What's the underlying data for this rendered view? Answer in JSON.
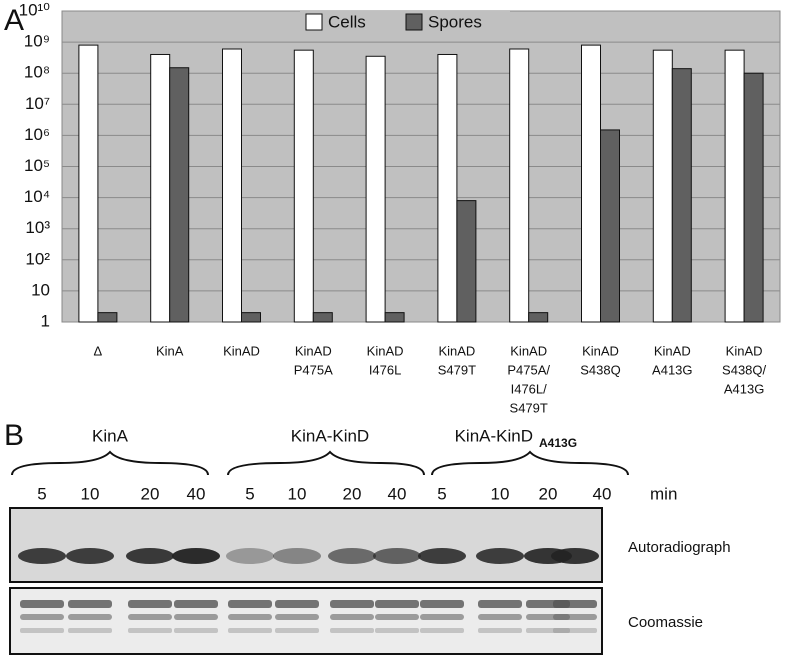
{
  "panel_a": {
    "label": "A"
  },
  "chart_data": {
    "type": "bar",
    "log_scale": true,
    "grid": true,
    "legend": "top",
    "categories": [
      [
        "Δ"
      ],
      [
        "KinA"
      ],
      [
        "KinAD"
      ],
      [
        "KinAD",
        "P475A"
      ],
      [
        "KinAD",
        "I476L"
      ],
      [
        "KinAD",
        "S479T"
      ],
      [
        "KinAD",
        "P475A/",
        "I476L/",
        "S479T"
      ],
      [
        "KinAD",
        "S438Q"
      ],
      [
        "KinAD",
        "A413G"
      ],
      [
        "KinAD",
        "S438Q/",
        "A413G"
      ]
    ],
    "series": [
      {
        "name": "Cells",
        "color": "#ffffff",
        "values": [
          800000000,
          400000000,
          600000000,
          550000000,
          350000000,
          400000000,
          600000000,
          800000000,
          550000000,
          550000000
        ]
      },
      {
        "name": "Spores",
        "color": "#606060",
        "values": [
          2,
          150000000,
          2,
          2,
          2,
          8000,
          2,
          1500000,
          140000000,
          100000000
        ]
      }
    ],
    "ylim": [
      1,
      10000000000
    ],
    "yticks": [
      1,
      10,
      {
        "value": 100,
        "label": "10²"
      },
      {
        "value": 1000,
        "label": "10³"
      },
      {
        "value": 10000,
        "label": "10⁴"
      },
      {
        "value": 100000,
        "label": "10⁵"
      },
      {
        "value": 1000000,
        "label": "10⁶"
      },
      {
        "value": 10000000,
        "label": "10⁷"
      },
      {
        "value": 100000000,
        "label": "10⁸"
      },
      {
        "value": 1000000000,
        "label": "10⁹"
      },
      {
        "value": 10000000000,
        "label": "10¹⁰"
      }
    ]
  },
  "panel_b": {
    "label": "B",
    "groups": [
      {
        "label": "KinA"
      },
      {
        "label": "KinA-KinD"
      },
      {
        "label": "KinA-KinD",
        "subscript": "A413G"
      }
    ],
    "times": [
      "5",
      "10",
      "20",
      "40",
      "5",
      "10",
      "20",
      "40",
      "5",
      "10",
      "20",
      "40"
    ],
    "time_unit": "min",
    "rows": [
      "Autoradiograph",
      "Coomassie"
    ]
  }
}
